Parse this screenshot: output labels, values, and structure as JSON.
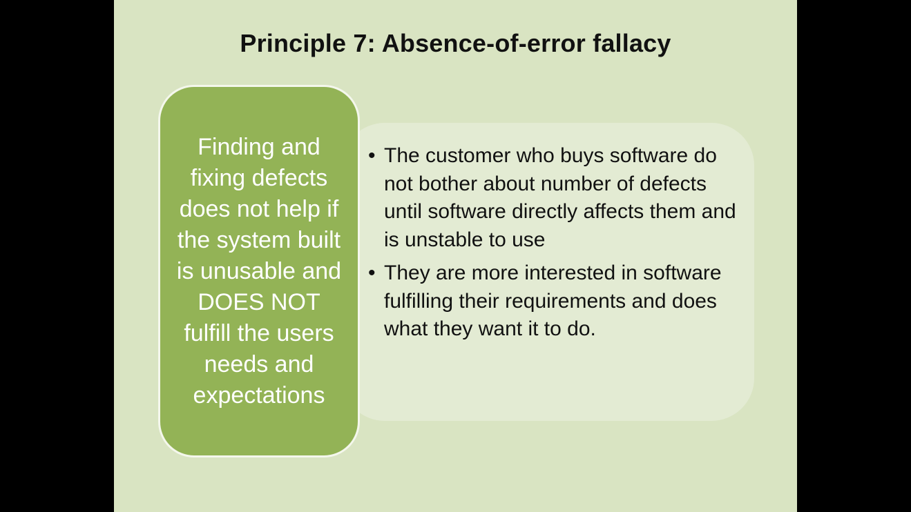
{
  "slide": {
    "title": "Principle 7: Absence-of-error fallacy",
    "callout": "Finding and fixing defects does not help if the system built is unusable and DOES NOT fulfill the users needs and expectations",
    "bullets": [
      "The customer who buys software do not bother about number of defects until software directly affects them and is unstable to use",
      "They are more interested in software fulfilling their requirements and does what they want it to do."
    ]
  },
  "colors": {
    "letterbox": "#000000",
    "slide_background": "#d9e4c2",
    "panel_background": "#e3ebd3",
    "callout_fill": "#93b356",
    "callout_text": "#ffffff",
    "body_text": "#111111"
  },
  "icons": {
    "bullet": "bullet-dot"
  }
}
